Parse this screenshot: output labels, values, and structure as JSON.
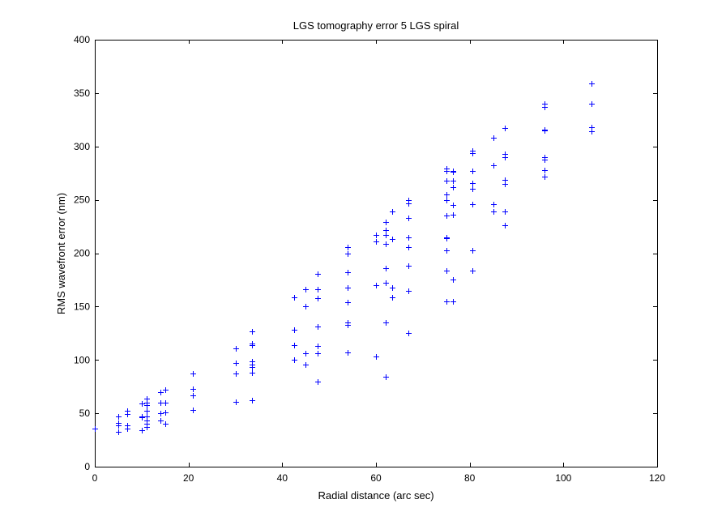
{
  "chart_data": {
    "type": "scatter",
    "title": "LGS tomography error 5 LGS spiral",
    "xlabel": "Radial distance (arc sec)",
    "ylabel": "RMS wavefront error (nm)",
    "xlim": [
      0,
      120
    ],
    "ylim": [
      0,
      400
    ],
    "xticks": [
      0,
      20,
      40,
      60,
      80,
      100,
      120
    ],
    "yticks": [
      0,
      50,
      100,
      150,
      200,
      250,
      300,
      350,
      400
    ],
    "grid": false,
    "marker": "+",
    "marker_color": "#0000ff",
    "points": [
      [
        0,
        36
      ],
      [
        5,
        47
      ],
      [
        5,
        41
      ],
      [
        5,
        39
      ],
      [
        5,
        33
      ],
      [
        7,
        52
      ],
      [
        7,
        49
      ],
      [
        7,
        39
      ],
      [
        7,
        36
      ],
      [
        10,
        59
      ],
      [
        10,
        47
      ],
      [
        10,
        46
      ],
      [
        10,
        34
      ],
      [
        11,
        64
      ],
      [
        11,
        60
      ],
      [
        11,
        58
      ],
      [
        11,
        52
      ],
      [
        11,
        47
      ],
      [
        11,
        43
      ],
      [
        11,
        40
      ],
      [
        11,
        37
      ],
      [
        14,
        70
      ],
      [
        14,
        60
      ],
      [
        14,
        50
      ],
      [
        14,
        43
      ],
      [
        15,
        72
      ],
      [
        15,
        60
      ],
      [
        15,
        51
      ],
      [
        15,
        40
      ],
      [
        21,
        87
      ],
      [
        21,
        73
      ],
      [
        21,
        67
      ],
      [
        21,
        53
      ],
      [
        30,
        111
      ],
      [
        30,
        97
      ],
      [
        30,
        87
      ],
      [
        30,
        61
      ],
      [
        33.5,
        127
      ],
      [
        33.5,
        115
      ],
      [
        33.5,
        114
      ],
      [
        33.5,
        99
      ],
      [
        33.5,
        96
      ],
      [
        33.5,
        93
      ],
      [
        33.5,
        88
      ],
      [
        33.5,
        62
      ],
      [
        42.5,
        159
      ],
      [
        42.5,
        128
      ],
      [
        42.5,
        114
      ],
      [
        42.5,
        100
      ],
      [
        45,
        166
      ],
      [
        45,
        150
      ],
      [
        45,
        106
      ],
      [
        45,
        96
      ],
      [
        47.5,
        181
      ],
      [
        47.5,
        166
      ],
      [
        47.5,
        158
      ],
      [
        47.5,
        131
      ],
      [
        47.5,
        113
      ],
      [
        47.5,
        106
      ],
      [
        47.5,
        80
      ],
      [
        54,
        206
      ],
      [
        54,
        200
      ],
      [
        54,
        182
      ],
      [
        54,
        168
      ],
      [
        54,
        154
      ],
      [
        54,
        135
      ],
      [
        54,
        133
      ],
      [
        54,
        107
      ],
      [
        60,
        217
      ],
      [
        60,
        211
      ],
      [
        60,
        170
      ],
      [
        60,
        103
      ],
      [
        62,
        229
      ],
      [
        62,
        222
      ],
      [
        62,
        217
      ],
      [
        62,
        209
      ],
      [
        62,
        186
      ],
      [
        62,
        172
      ],
      [
        62,
        135
      ],
      [
        62,
        84
      ],
      [
        63.5,
        239
      ],
      [
        63.5,
        213
      ],
      [
        63.5,
        168
      ],
      [
        63.5,
        159
      ],
      [
        67,
        250
      ],
      [
        67,
        247
      ],
      [
        67,
        233
      ],
      [
        67,
        215
      ],
      [
        67,
        206
      ],
      [
        67,
        188
      ],
      [
        67,
        165
      ],
      [
        67,
        125
      ],
      [
        75,
        279
      ],
      [
        75,
        277
      ],
      [
        75,
        268
      ],
      [
        75,
        255
      ],
      [
        75,
        250
      ],
      [
        75,
        235
      ],
      [
        75,
        215
      ],
      [
        75,
        214
      ],
      [
        75,
        203
      ],
      [
        75,
        184
      ],
      [
        75,
        155
      ],
      [
        76.5,
        277
      ],
      [
        76.5,
        276
      ],
      [
        76.5,
        268
      ],
      [
        76.5,
        262
      ],
      [
        76.5,
        245
      ],
      [
        76.5,
        236
      ],
      [
        76.5,
        175
      ],
      [
        76.5,
        155
      ],
      [
        80.5,
        296
      ],
      [
        80.5,
        294
      ],
      [
        80.5,
        277
      ],
      [
        80.5,
        266
      ],
      [
        80.5,
        260
      ],
      [
        80.5,
        246
      ],
      [
        80.5,
        203
      ],
      [
        80.5,
        184
      ],
      [
        85,
        308
      ],
      [
        85,
        282
      ],
      [
        85,
        246
      ],
      [
        85,
        239
      ],
      [
        87.5,
        317
      ],
      [
        87.5,
        293
      ],
      [
        87.5,
        290
      ],
      [
        87.5,
        269
      ],
      [
        87.5,
        265
      ],
      [
        87.5,
        239
      ],
      [
        87.5,
        226
      ],
      [
        96,
        340
      ],
      [
        96,
        337
      ],
      [
        96,
        316
      ],
      [
        96,
        315
      ],
      [
        96,
        290
      ],
      [
        96,
        288
      ],
      [
        96,
        278
      ],
      [
        96,
        272
      ],
      [
        106,
        359
      ],
      [
        106,
        340
      ],
      [
        106,
        318
      ],
      [
        106,
        314
      ]
    ]
  }
}
